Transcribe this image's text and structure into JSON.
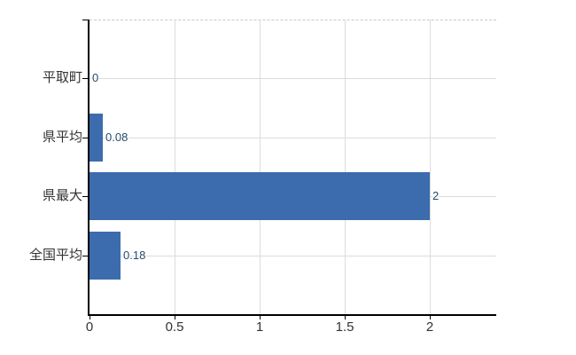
{
  "chart_data": {
    "type": "bar",
    "orientation": "horizontal",
    "title": "",
    "legend": "none",
    "grid": "on",
    "categories": [
      "平取町",
      "県平均",
      "県最大",
      "全国平均"
    ],
    "values": [
      0,
      0.08,
      2,
      0.18
    ],
    "value_labels": [
      "0",
      "0.08",
      "2",
      "0.18"
    ],
    "x_tick_values": [
      0,
      0.5,
      1,
      1.5,
      2
    ],
    "x_tick_labels": [
      "0",
      "0.5",
      "1",
      "1.5",
      "2"
    ],
    "xlim": [
      0,
      2.39
    ],
    "bar_color": "#3d6cae",
    "value_label_color": "#274a6d",
    "grid_color": "#dcdcdc",
    "axis_color": "#000000",
    "tick_label_color": "#333333",
    "background_color": "#ffffff"
  }
}
